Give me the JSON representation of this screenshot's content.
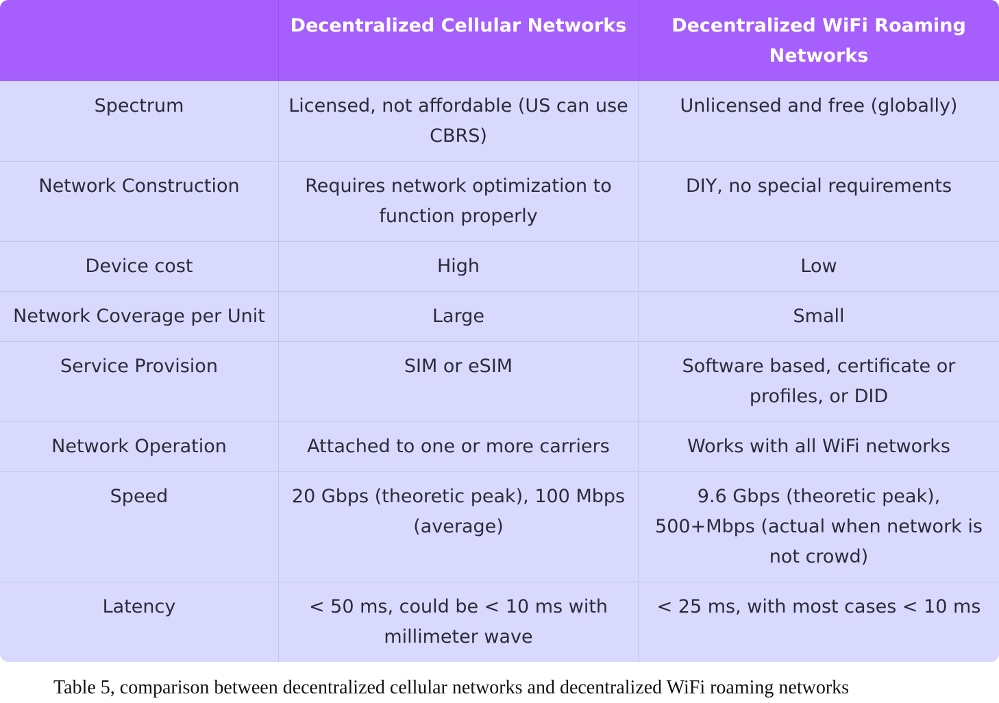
{
  "table": {
    "headers": [
      "",
      "Decentralized Cellular Networks",
      "Decentralized WiFi Roaming Networks"
    ],
    "rows": [
      {
        "label": "Spectrum",
        "cellular": "Licensed, not affordable (US can use CBRS)",
        "wifi": "Unlicensed and free (globally)"
      },
      {
        "label": "Network Construction",
        "cellular": "Requires network optimization to function properly",
        "wifi": "DIY, no special requirements"
      },
      {
        "label": "Device cost",
        "cellular": "High",
        "wifi": "Low"
      },
      {
        "label": "Network Coverage per Unit",
        "cellular": "Large",
        "wifi": "Small"
      },
      {
        "label": "Service Provision",
        "cellular": "SIM or eSIM",
        "wifi": "Software based, certificate or profiles, or DID"
      },
      {
        "label": "Network Operation",
        "cellular": "Attached to one or more carriers",
        "wifi": "Works with all WiFi networks"
      },
      {
        "label": "Speed",
        "cellular": "20 Gbps (theoretic peak), 100 Mbps (average)",
        "wifi": "9.6 Gbps (theoretic peak), 500+Mbps (actual when network is not crowd)"
      },
      {
        "label": "Latency",
        "cellular": "< 50 ms, could be < 10 ms with millimeter wave",
        "wifi": "< 25 ms, with most cases < 10 ms"
      }
    ]
  },
  "caption": "Table 5, comparison between decentralized cellular networks and decentralized WiFi roaming networks",
  "colors": {
    "header_bg": "#a65efc",
    "cell_bg": "#d8d9fd",
    "header_text": "#ffffff"
  }
}
